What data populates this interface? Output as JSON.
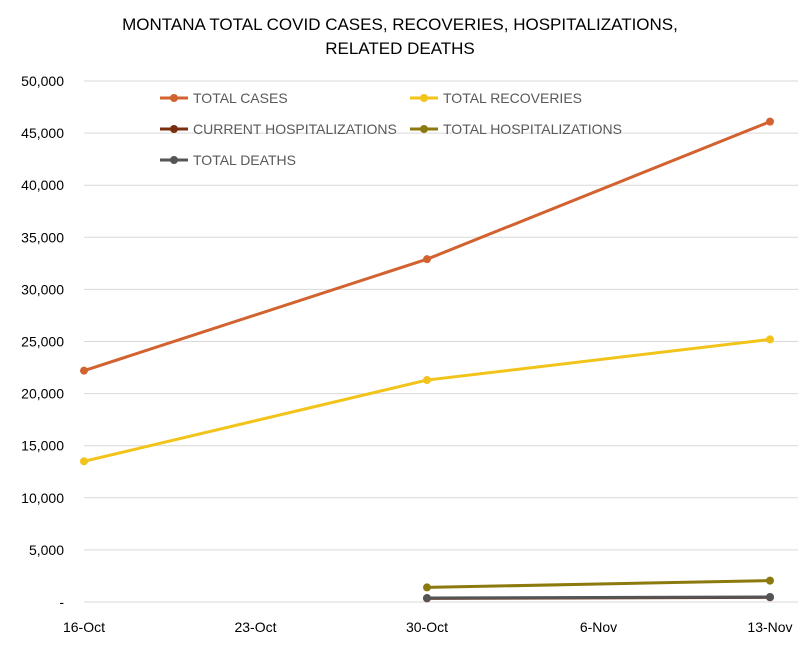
{
  "chart_data": {
    "type": "line",
    "title_lines": [
      "MONTANA TOTAL COVID CASES, RECOVERIES, HOSPITALIZATIONS,",
      "RELATED DEATHS"
    ],
    "x_tick_labels": [
      "16-Oct",
      "23-Oct",
      "30-Oct",
      "6-Nov",
      "13-Nov"
    ],
    "y_tick_labels": [
      "-",
      "5,000",
      "10,000",
      "15,000",
      "20,000",
      "25,000",
      "30,000",
      "35,000",
      "40,000",
      "45,000",
      "50,000"
    ],
    "ylim": [
      0,
      50000
    ],
    "grid": "horizontal",
    "legend_position": "top",
    "series": [
      {
        "name": "TOTAL CASES",
        "color": "#d2622f",
        "points": [
          [
            "16-Oct",
            22200
          ],
          [
            "30-Oct",
            32900
          ],
          [
            "13-Nov",
            46100
          ]
        ]
      },
      {
        "name": "TOTAL RECOVERIES",
        "color": "#f2c318",
        "points": [
          [
            "16-Oct",
            13500
          ],
          [
            "30-Oct",
            21300
          ],
          [
            "13-Nov",
            25200
          ]
        ]
      },
      {
        "name": "CURRENT HOSPITALIZATIONS",
        "color": "#7a2e10",
        "points": [
          [
            "30-Oct",
            350
          ],
          [
            "13-Nov",
            450
          ]
        ]
      },
      {
        "name": "TOTAL HOSPITALIZATIONS",
        "color": "#8c7a0f",
        "points": [
          [
            "30-Oct",
            1400
          ],
          [
            "13-Nov",
            2050
          ]
        ]
      },
      {
        "name": "TOTAL DEATHS",
        "color": "#555555",
        "points": [
          [
            "30-Oct",
            380
          ],
          [
            "13-Nov",
            480
          ]
        ]
      }
    ]
  }
}
